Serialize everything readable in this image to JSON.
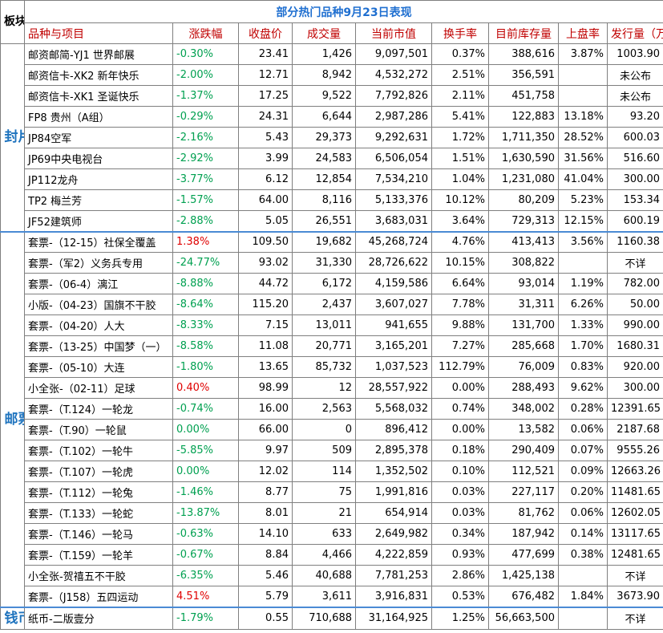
{
  "corner_label": "板块",
  "title": "部分热门品种9月23日表现",
  "columns": [
    "品种与项目",
    "涨跌幅",
    "收盘价",
    "成交量",
    "当前市值",
    "换手率",
    "目前库存量",
    "上盘率",
    "发行量（万）"
  ],
  "sections": [
    {
      "label": "封片",
      "rows": [
        {
          "name": "邮资邮简-YJ1 世界邮展",
          "change": "-0.30%",
          "close": "23.41",
          "volume": "1,426",
          "market_value": "9,097,501",
          "turnover": "0.37%",
          "stock": "388,616",
          "listing_rate": "3.87%",
          "issue": "1003.90"
        },
        {
          "name": "邮资信卡-XK2 新年快乐",
          "change": "-2.00%",
          "close": "12.71",
          "volume": "8,942",
          "market_value": "4,532,272",
          "turnover": "2.51%",
          "stock": "356,591",
          "listing_rate": "",
          "issue": "未公布"
        },
        {
          "name": "邮资信卡-XK1 圣诞快乐",
          "change": "-1.37%",
          "close": "17.25",
          "volume": "9,522",
          "market_value": "7,792,826",
          "turnover": "2.11%",
          "stock": "451,758",
          "listing_rate": "",
          "issue": "未公布"
        },
        {
          "name": "FP8 贵州（A组）",
          "change": "-0.29%",
          "close": "24.31",
          "volume": "6,644",
          "market_value": "2,987,286",
          "turnover": "5.41%",
          "stock": "122,883",
          "listing_rate": "13.18%",
          "issue": "93.20"
        },
        {
          "name": "JP84空军",
          "change": "-2.16%",
          "close": "5.43",
          "volume": "29,373",
          "market_value": "9,292,631",
          "turnover": "1.72%",
          "stock": "1,711,350",
          "listing_rate": "28.52%",
          "issue": "600.03"
        },
        {
          "name": "JP69中央电视台",
          "change": "-2.92%",
          "close": "3.99",
          "volume": "24,583",
          "market_value": "6,506,054",
          "turnover": "1.51%",
          "stock": "1,630,590",
          "listing_rate": "31.56%",
          "issue": "516.60"
        },
        {
          "name": "JP112龙舟",
          "change": "-3.77%",
          "close": "6.12",
          "volume": "12,854",
          "market_value": "7,534,210",
          "turnover": "1.04%",
          "stock": "1,231,080",
          "listing_rate": "41.04%",
          "issue": "300.00"
        },
        {
          "name": "TP2 梅兰芳",
          "change": "-1.57%",
          "close": "64.00",
          "volume": "8,116",
          "market_value": "5,133,376",
          "turnover": "10.12%",
          "stock": "80,209",
          "listing_rate": "5.23%",
          "issue": "153.34"
        },
        {
          "name": "JF52建筑师",
          "change": "-2.88%",
          "close": "5.05",
          "volume": "26,551",
          "market_value": "3,683,031",
          "turnover": "3.64%",
          "stock": "729,313",
          "listing_rate": "12.15%",
          "issue": "600.19"
        }
      ]
    },
    {
      "label": "邮票",
      "rows": [
        {
          "name": "套票-（12-15）社保全覆盖",
          "change": "1.38%",
          "close": "109.50",
          "volume": "19,682",
          "market_value": "45,268,724",
          "turnover": "4.76%",
          "stock": "413,413",
          "listing_rate": "3.56%",
          "issue": "1160.38"
        },
        {
          "name": "套票-（军2）义务兵专用",
          "change": "-24.77%",
          "close": "93.02",
          "volume": "31,330",
          "market_value": "28,726,622",
          "turnover": "10.15%",
          "stock": "308,822",
          "listing_rate": "",
          "issue": "不详"
        },
        {
          "name": "套票-（06-4）漓江",
          "change": "-8.88%",
          "close": "44.72",
          "volume": "6,172",
          "market_value": "4,159,586",
          "turnover": "6.64%",
          "stock": "93,014",
          "listing_rate": "1.19%",
          "issue": "782.00"
        },
        {
          "name": "小版-（04-23）国旗不干胶",
          "change": "-8.64%",
          "close": "115.20",
          "volume": "2,437",
          "market_value": "3,607,027",
          "turnover": "7.78%",
          "stock": "31,311",
          "listing_rate": "6.26%",
          "issue": "50.00"
        },
        {
          "name": "套票-（04-20）人大",
          "change": "-8.33%",
          "close": "7.15",
          "volume": "13,011",
          "market_value": "941,655",
          "turnover": "9.88%",
          "stock": "131,700",
          "listing_rate": "1.33%",
          "issue": "990.00"
        },
        {
          "name": "套票-（13-25）中国梦（一）",
          "change": "-8.58%",
          "close": "11.08",
          "volume": "20,771",
          "market_value": "3,165,201",
          "turnover": "7.27%",
          "stock": "285,668",
          "listing_rate": "1.70%",
          "issue": "1680.31"
        },
        {
          "name": "套票-（05-10）大连",
          "change": "-1.80%",
          "close": "13.65",
          "volume": "85,732",
          "market_value": "1,037,523",
          "turnover": "112.79%",
          "stock": "76,009",
          "listing_rate": "0.83%",
          "issue": "920.00"
        },
        {
          "name": "小全张-（02-11）足球",
          "change": "0.40%",
          "close": "98.99",
          "volume": "12",
          "market_value": "28,557,922",
          "turnover": "0.00%",
          "stock": "288,493",
          "listing_rate": "9.62%",
          "issue": "300.00"
        },
        {
          "name": "套票-（T.124）一轮龙",
          "change": "-0.74%",
          "close": "16.00",
          "volume": "2,563",
          "market_value": "5,568,032",
          "turnover": "0.74%",
          "stock": "348,002",
          "listing_rate": "0.28%",
          "issue": "12391.65"
        },
        {
          "name": "套票-（T.90）一轮鼠",
          "change": "0.00%",
          "close": "66.00",
          "volume": "0",
          "market_value": "896,412",
          "turnover": "0.00%",
          "stock": "13,582",
          "listing_rate": "0.06%",
          "issue": "2187.68"
        },
        {
          "name": "套票-（T.102）一轮牛",
          "change": "-5.85%",
          "close": "9.97",
          "volume": "509",
          "market_value": "2,895,378",
          "turnover": "0.18%",
          "stock": "290,409",
          "listing_rate": "0.07%",
          "issue": "9555.26"
        },
        {
          "name": "套票-（T.107）一轮虎",
          "change": "0.00%",
          "close": "12.02",
          "volume": "114",
          "market_value": "1,352,502",
          "turnover": "0.10%",
          "stock": "112,521",
          "listing_rate": "0.09%",
          "issue": "12663.26"
        },
        {
          "name": "套票-（T.112）一轮兔",
          "change": "-1.46%",
          "close": "8.77",
          "volume": "75",
          "market_value": "1,991,816",
          "turnover": "0.03%",
          "stock": "227,117",
          "listing_rate": "0.20%",
          "issue": "11481.65"
        },
        {
          "name": "套票-（T.133）一轮蛇",
          "change": "-13.87%",
          "close": "8.01",
          "volume": "21",
          "market_value": "654,914",
          "turnover": "0.03%",
          "stock": "81,762",
          "listing_rate": "0.06%",
          "issue": "12602.05"
        },
        {
          "name": "套票-（T.146）一轮马",
          "change": "-0.63%",
          "close": "14.10",
          "volume": "633",
          "market_value": "2,649,982",
          "turnover": "0.34%",
          "stock": "187,942",
          "listing_rate": "0.14%",
          "issue": "13117.65"
        },
        {
          "name": "套票-（T.159）一轮羊",
          "change": "-0.67%",
          "close": "8.84",
          "volume": "4,466",
          "market_value": "4,222,859",
          "turnover": "0.93%",
          "stock": "477,699",
          "listing_rate": "0.38%",
          "issue": "12481.65"
        },
        {
          "name": "小全张-贺禧五不干胶",
          "change": "-6.35%",
          "close": "5.46",
          "volume": "40,688",
          "market_value": "7,781,253",
          "turnover": "2.86%",
          "stock": "1,425,138",
          "listing_rate": "",
          "issue": "不详"
        },
        {
          "name": "套票-（J158）五四运动",
          "change": "4.51%",
          "close": "5.79",
          "volume": "3,611",
          "market_value": "3,916,831",
          "turnover": "0.53%",
          "stock": "676,482",
          "listing_rate": "1.84%",
          "issue": "3673.90"
        }
      ]
    },
    {
      "label": "钱币",
      "rows": [
        {
          "name": "纸币-二版壹分",
          "change": "-1.79%",
          "close": "0.55",
          "volume": "710,688",
          "market_value": "31,164,925",
          "turnover": "1.25%",
          "stock": "56,663,500",
          "listing_rate": "",
          "issue": "不详"
        }
      ]
    }
  ],
  "colors": {
    "up": "#e00000",
    "down": "#00a050",
    "title": "#1f6fd0",
    "section": "#1e73be",
    "header": "#c00000"
  }
}
